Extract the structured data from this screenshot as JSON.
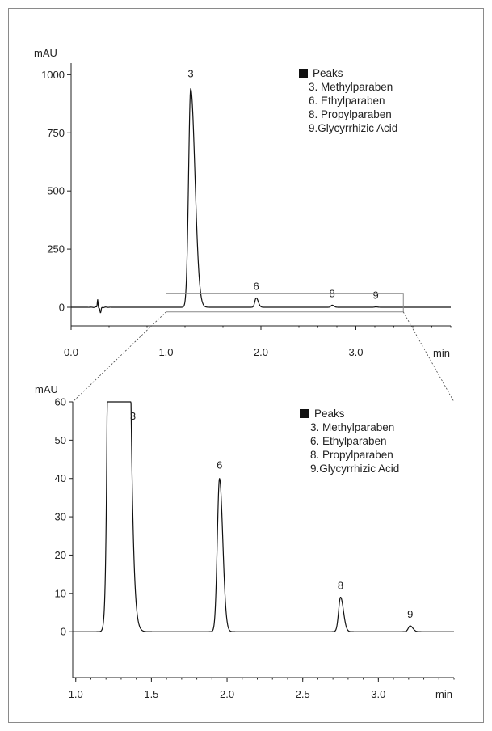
{
  "chart_data": [
    {
      "type": "line",
      "ylabel": "mAU",
      "xlabel": "min",
      "xlim": [
        0.0,
        4.0
      ],
      "ylim": [
        -80,
        1050
      ],
      "x_ticks": [
        {
          "value": 0.0,
          "label": "0.0"
        },
        {
          "value": 1.0,
          "label": "1.0"
        },
        {
          "value": 2.0,
          "label": "2.0"
        },
        {
          "value": 3.0,
          "label": "3.0"
        }
      ],
      "y_ticks": [
        {
          "value": 0,
          "label": "0"
        },
        {
          "value": 250,
          "label": "250"
        },
        {
          "value": 500,
          "label": "500"
        },
        {
          "value": 750,
          "label": "750"
        },
        {
          "value": 1000,
          "label": "1000"
        }
      ],
      "peaks": [
        {
          "label": "3",
          "rt": 1.26,
          "height": 940,
          "width": 0.028
        },
        {
          "label": "6",
          "rt": 1.95,
          "height": 40,
          "width": 0.018
        },
        {
          "label": "8",
          "rt": 2.75,
          "height": 9,
          "width": 0.016
        },
        {
          "label": "9",
          "rt": 3.21,
          "height": 1.5,
          "width": 0.015
        }
      ],
      "zoom_box": {
        "x": [
          1.0,
          3.5
        ],
        "y": [
          -20,
          60
        ]
      },
      "legend": {
        "title": "Peaks",
        "items": [
          "3. Methylparaben",
          "6. Ethylparaben",
          "8. Propylparaben",
          "9.Glycyrrhizic Acid"
        ]
      }
    },
    {
      "type": "line",
      "ylabel": "mAU",
      "xlabel": "min",
      "xlim": [
        0.98,
        3.5
      ],
      "ylim": [
        -12,
        60
      ],
      "x_ticks": [
        {
          "value": 1.0,
          "label": "1.0"
        },
        {
          "value": 1.5,
          "label": "1.5"
        },
        {
          "value": 2.0,
          "label": "2.0"
        },
        {
          "value": 2.5,
          "label": "2.5"
        },
        {
          "value": 3.0,
          "label": "3.0"
        }
      ],
      "y_ticks": [
        {
          "value": 0,
          "label": "0"
        },
        {
          "value": 10,
          "label": "10"
        },
        {
          "value": 20,
          "label": "20"
        },
        {
          "value": 30,
          "label": "30"
        },
        {
          "value": 40,
          "label": "40"
        },
        {
          "value": 50,
          "label": "50"
        },
        {
          "value": 60,
          "label": "60"
        }
      ],
      "peaks": [
        {
          "label": "3",
          "rt": 1.26,
          "height": 940,
          "width": 0.028
        },
        {
          "label": "6",
          "rt": 1.95,
          "height": 40,
          "width": 0.018
        },
        {
          "label": "8",
          "rt": 2.75,
          "height": 9,
          "width": 0.016
        },
        {
          "label": "9",
          "rt": 3.21,
          "height": 1.5,
          "width": 0.015
        }
      ],
      "legend": {
        "title": "Peaks",
        "items": [
          "3. Methylparaben",
          "6. Ethylparaben",
          "8. Propylparaben",
          "9.Glycyrrhizic Acid"
        ]
      }
    }
  ],
  "colors": {
    "trace": "#111111",
    "axis": "#222222",
    "zoom_box": "#888888",
    "legend_marker": "#111111"
  }
}
